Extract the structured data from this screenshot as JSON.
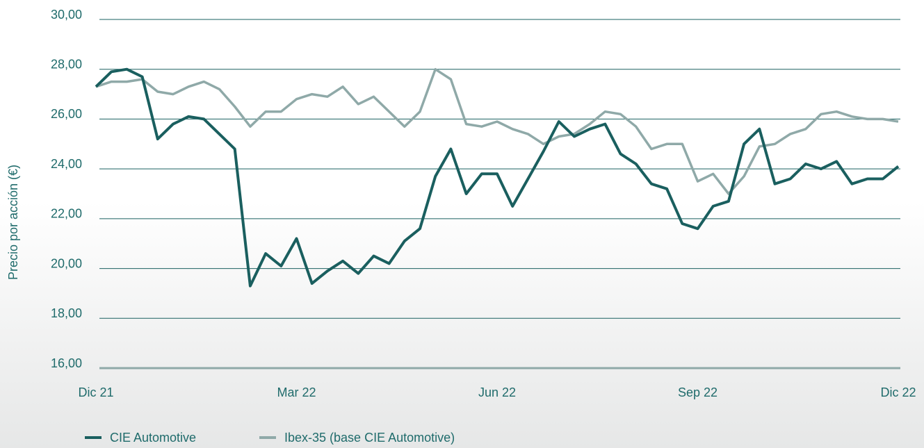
{
  "chart_data": {
    "type": "line",
    "y_label": "Precio por acción (€)",
    "categories": [
      "Dic 21",
      null,
      null,
      null,
      null,
      null,
      null,
      null,
      null,
      null,
      null,
      null,
      null,
      "Mar 22",
      null,
      null,
      null,
      null,
      null,
      null,
      null,
      null,
      null,
      null,
      null,
      null,
      "Jun 22",
      null,
      null,
      null,
      null,
      null,
      null,
      null,
      null,
      null,
      null,
      null,
      null,
      "Sep 22",
      null,
      null,
      null,
      null,
      null,
      null,
      null,
      null,
      null,
      null,
      null,
      null,
      "Dic 22"
    ],
    "series": [
      {
        "name": "CIE Automotive",
        "color": "#1a5f5f",
        "values": [
          27.3,
          27.9,
          28.0,
          27.7,
          25.2,
          25.8,
          26.1,
          26.0,
          25.4,
          24.8,
          19.3,
          20.6,
          20.1,
          21.2,
          19.4,
          19.9,
          20.3,
          19.8,
          20.5,
          20.2,
          21.1,
          21.6,
          23.7,
          24.8,
          23.0,
          23.8,
          23.8,
          22.5,
          23.6,
          24.7,
          25.9,
          25.3,
          25.6,
          25.8,
          24.6,
          24.2,
          23.4,
          23.2,
          21.8,
          21.6,
          22.5,
          22.7,
          25.0,
          25.6,
          23.4,
          23.6,
          24.2,
          24.0,
          24.3,
          23.4,
          23.6,
          23.6,
          24.1
        ]
      },
      {
        "name": "Ibex-35 (base CIE Automotive)",
        "color": "#8fa9a8",
        "values": [
          27.3,
          27.5,
          27.5,
          27.6,
          27.1,
          27.0,
          27.3,
          27.5,
          27.2,
          26.5,
          25.7,
          26.3,
          26.3,
          26.8,
          27.0,
          26.9,
          27.3,
          26.6,
          26.9,
          26.3,
          25.7,
          26.3,
          28.0,
          27.6,
          25.8,
          25.7,
          25.9,
          25.6,
          25.4,
          25.0,
          25.3,
          25.4,
          25.8,
          26.3,
          26.2,
          25.7,
          24.8,
          25.0,
          25.0,
          23.5,
          23.8,
          23.0,
          23.7,
          24.9,
          25.0,
          25.4,
          25.6,
          26.2,
          26.3,
          26.1,
          26.0,
          26.0,
          25.9
        ]
      }
    ],
    "ylim": [
      16,
      30
    ],
    "yticks": [
      {
        "value": 16,
        "label": "16,00"
      },
      {
        "value": 18,
        "label": "18,00"
      },
      {
        "value": 20,
        "label": "20,00"
      },
      {
        "value": 22,
        "label": "22,00"
      },
      {
        "value": 24,
        "label": "24,00"
      },
      {
        "value": 26,
        "label": "26,00"
      },
      {
        "value": 28,
        "label": "28,00"
      },
      {
        "value": 30,
        "label": "30,00"
      }
    ],
    "grid": true,
    "legend": "bottom-left"
  }
}
